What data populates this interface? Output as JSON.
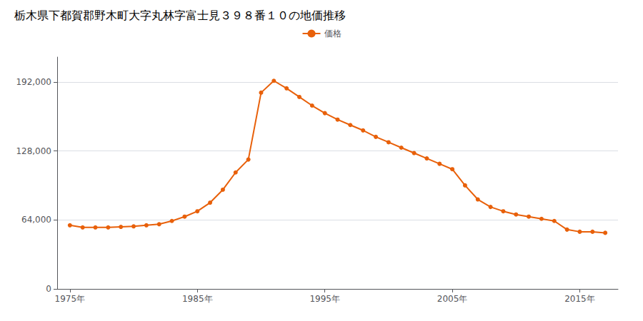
{
  "chart_data": {
    "type": "line",
    "title": "栃木県下都賀郡野木町大字丸林字富士見３９８番１０の地価推移",
    "x": [
      1975,
      1976,
      1977,
      1978,
      1979,
      1980,
      1981,
      1982,
      1983,
      1984,
      1985,
      1986,
      1987,
      1988,
      1989,
      1990,
      1991,
      1992,
      1993,
      1994,
      1995,
      1996,
      1997,
      1998,
      1999,
      2000,
      2001,
      2002,
      2003,
      2004,
      2005,
      2006,
      2007,
      2008,
      2009,
      2010,
      2011,
      2012,
      2013,
      2014,
      2015,
      2016,
      2017
    ],
    "series": [
      {
        "name": "価格",
        "color": "#e8600a",
        "values": [
          59000,
          57000,
          57000,
          57000,
          57500,
          58000,
          59000,
          60000,
          63000,
          67000,
          72000,
          80000,
          92000,
          108000,
          120000,
          182000,
          193000,
          186000,
          178000,
          170000,
          163000,
          157000,
          152000,
          147000,
          141000,
          136000,
          131000,
          126000,
          121000,
          116000,
          111000,
          96000,
          83000,
          76000,
          72000,
          69000,
          67000,
          65000,
          63000,
          55000,
          53000,
          53000,
          52000
        ]
      }
    ],
    "xlim": [
      1974,
      2018
    ],
    "xticks": [
      {
        "value": 1975,
        "label": "1975年"
      },
      {
        "value": 1985,
        "label": "1985年"
      },
      {
        "value": 1995,
        "label": "1995年"
      },
      {
        "value": 2005,
        "label": "2005年"
      },
      {
        "value": 2015,
        "label": "2015年"
      }
    ],
    "ylim": [
      0,
      215000
    ],
    "yticks": [
      0,
      {
        "value": 64000,
        "label": "64,000"
      },
      {
        "value": 128000,
        "label": "128,000"
      },
      {
        "value": 192000,
        "label": "192,000"
      }
    ],
    "grid": true,
    "legend": "top",
    "marker": "circle"
  }
}
